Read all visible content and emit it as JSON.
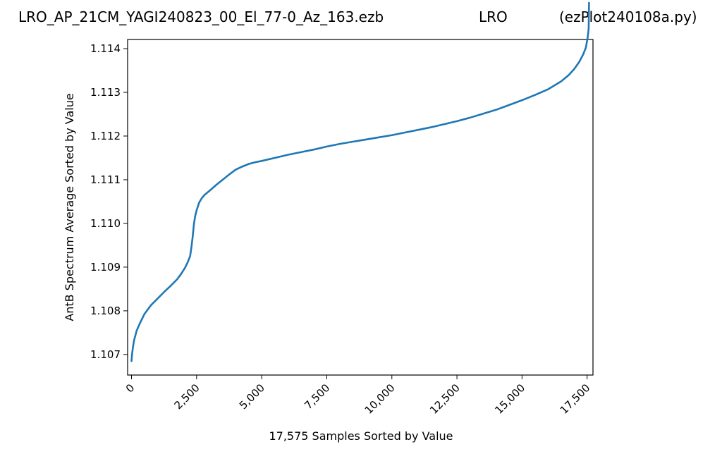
{
  "header": {
    "left": "LRO_AP_21CM_YAGI240823_00_El_77-0_Az_163.ezb",
    "center": "LRO",
    "right": "(ezPlot240108a.py)"
  },
  "colors": {
    "line": "#1f77b4",
    "axis": "#000000",
    "background": "#ffffff"
  },
  "chart_data": {
    "type": "line",
    "title": "",
    "xlabel": "17,575 Samples Sorted by Value",
    "ylabel": "AntB Spectrum Average Sorted by Value",
    "xlim": [
      -150,
      17725
    ],
    "ylim": [
      1.10653,
      1.11421
    ],
    "grid": false,
    "legend": "none",
    "x_ticks": [
      0,
      2500,
      5000,
      7500,
      10000,
      12500,
      15000,
      17500
    ],
    "x_tick_labels": [
      "0",
      "2,500",
      "5,000",
      "7,500",
      "10,000",
      "12,500",
      "15,000",
      "17,500"
    ],
    "y_ticks": [
      1.107,
      1.108,
      1.109,
      1.11,
      1.111,
      1.112,
      1.113,
      1.114
    ],
    "y_tick_labels": [
      "1.107",
      "1.108",
      "1.109",
      "1.110",
      "1.111",
      "1.112",
      "1.113",
      "1.114"
    ],
    "series": [
      {
        "x": [
          0,
          20,
          50,
          100,
          200,
          350,
          500,
          750,
          1000,
          1250,
          1500,
          1750,
          1900,
          2050,
          2150,
          2250,
          2300,
          2350,
          2400,
          2450,
          2500,
          2600,
          2700,
          2800,
          3000,
          3250,
          3500,
          3750,
          4000,
          4250,
          4500,
          4750,
          5000,
          5500,
          6000,
          6500,
          7000,
          7500,
          8000,
          8500,
          9000,
          9500,
          10000,
          10500,
          11000,
          11500,
          12000,
          12500,
          13000,
          13500,
          14000,
          14500,
          15000,
          15500,
          16000,
          16500,
          16800,
          17000,
          17200,
          17350,
          17450,
          17520,
          17560,
          17574
        ],
        "y": [
          1.10685,
          1.107,
          1.10715,
          1.10733,
          1.10755,
          1.10775,
          1.10793,
          1.10813,
          1.10828,
          1.10843,
          1.10857,
          1.10872,
          1.10884,
          1.10898,
          1.1091,
          1.10925,
          1.10945,
          1.1097,
          1.11,
          1.11018,
          1.1103,
          1.11048,
          1.11058,
          1.11065,
          1.11075,
          1.11088,
          1.111,
          1.11112,
          1.11123,
          1.1113,
          1.11136,
          1.1114,
          1.11143,
          1.1115,
          1.11157,
          1.11163,
          1.11169,
          1.11176,
          1.11182,
          1.11187,
          1.11192,
          1.11197,
          1.11202,
          1.11208,
          1.11214,
          1.1122,
          1.11227,
          1.11234,
          1.11242,
          1.11251,
          1.1126,
          1.11271,
          1.11282,
          1.11294,
          1.11307,
          1.11325,
          1.1134,
          1.11353,
          1.1137,
          1.11387,
          1.11402,
          1.11425,
          1.11446,
          1.11505
        ]
      }
    ]
  }
}
